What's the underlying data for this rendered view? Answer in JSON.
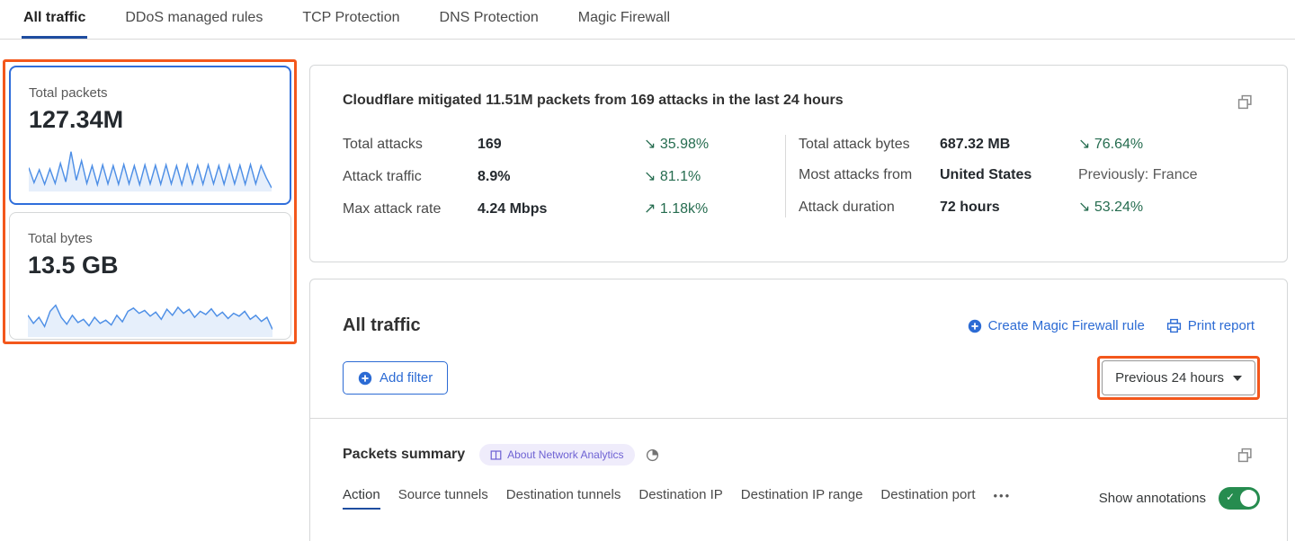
{
  "tabs": {
    "items": [
      {
        "label": "All traffic",
        "active": true
      },
      {
        "label": "DDoS managed rules",
        "active": false
      },
      {
        "label": "TCP Protection",
        "active": false
      },
      {
        "label": "DNS Protection",
        "active": false
      },
      {
        "label": "Magic Firewall",
        "active": false
      }
    ]
  },
  "sidebar": {
    "cards": [
      {
        "title": "Total packets",
        "value": "127.34M",
        "selected": true,
        "sparkline": [
          55,
          18,
          50,
          14,
          52,
          16,
          66,
          20,
          95,
          24,
          72,
          16,
          60,
          13,
          62,
          15,
          60,
          14,
          63,
          15,
          60,
          13,
          62,
          15,
          61,
          14,
          62,
          15,
          60,
          13,
          63,
          15,
          61,
          14,
          62,
          15,
          60,
          14,
          62,
          15,
          61,
          14,
          63,
          15,
          60,
          30,
          5
        ]
      },
      {
        "title": "Total bytes",
        "value": "13.5 GB",
        "selected": false,
        "sparkline": [
          50,
          30,
          45,
          22,
          60,
          75,
          45,
          28,
          50,
          32,
          40,
          24,
          45,
          30,
          38,
          26,
          50,
          34,
          60,
          68,
          55,
          62,
          48,
          58,
          40,
          65,
          50,
          70,
          55,
          65,
          45,
          60,
          52,
          66,
          48,
          58,
          42,
          55,
          48,
          60,
          40,
          50,
          35,
          45,
          15
        ]
      }
    ]
  },
  "chart_data": [
    {
      "type": "line",
      "title": "Total packets sparkline",
      "series": [
        {
          "name": "packets",
          "values": "see sidebar.cards.0.sparkline"
        }
      ]
    },
    {
      "type": "line",
      "title": "Total bytes sparkline",
      "series": [
        {
          "name": "bytes",
          "values": "see sidebar.cards.1.sparkline"
        }
      ]
    }
  ],
  "summary": {
    "title": "Cloudflare mitigated 11.51M packets from 169 attacks in the last 24 hours",
    "left_rows": [
      {
        "label": "Total attacks",
        "value": "169",
        "delta": "↘ 35.98%"
      },
      {
        "label": "Attack traffic",
        "value": "8.9%",
        "delta": "↘ 81.1%"
      },
      {
        "label": "Max attack rate",
        "value": "4.24 Mbps",
        "delta": "↗ 1.18k%"
      }
    ],
    "right_rows": [
      {
        "label": "Total attack bytes",
        "value": "687.32 MB",
        "delta": "↘ 76.64%"
      },
      {
        "label": "Most attacks from",
        "value": "United States",
        "delta": "Previously: France"
      },
      {
        "label": "Attack duration",
        "value": "72 hours",
        "delta": "↘ 53.24%"
      }
    ]
  },
  "traffic_panel": {
    "title": "All traffic",
    "create_rule_label": "Create Magic Firewall rule",
    "print_label": "Print report",
    "add_filter_label": "Add filter",
    "time_range_label": "Previous 24 hours"
  },
  "packets_summary": {
    "title": "Packets summary",
    "badge_label": "About Network Analytics",
    "subtabs": [
      {
        "label": "Action",
        "active": true
      },
      {
        "label": "Source tunnels",
        "active": false
      },
      {
        "label": "Destination tunnels",
        "active": false
      },
      {
        "label": "Destination IP",
        "active": false
      },
      {
        "label": "Destination IP range",
        "active": false
      },
      {
        "label": "Destination port",
        "active": false
      }
    ],
    "more_label": "•••",
    "annotations_label": "Show annotations",
    "annotations_on": true,
    "toggle_check": "✓"
  },
  "icons": {
    "copy": "overlapping-squares",
    "plus_circle": "filled-circle-plus",
    "printer": "printer-outline",
    "book": "open-book",
    "time": "pie-clock",
    "caret": "triangle-down"
  },
  "colors": {
    "accent_blue": "#2c6bd4",
    "tab_underline_navy": "#1e4da0",
    "delta_green": "#256c4f",
    "annotation_orange": "#f3571c",
    "badge_bg": "#efecfb",
    "badge_text": "#6e62d3",
    "toggle_green": "#268c4f",
    "sparkline_blue": "#4e8fe6",
    "selected_card_border": "#2f6edb",
    "card_border_gray": "#d5d7d8"
  }
}
